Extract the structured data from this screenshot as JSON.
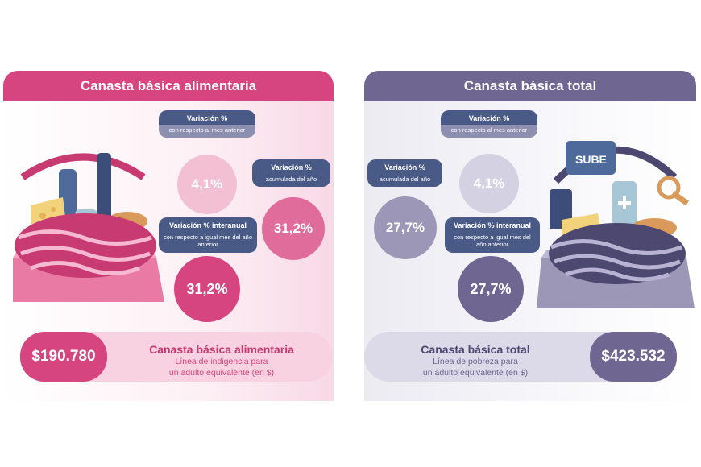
{
  "left": {
    "title": "Canasta básica alimentaria",
    "monthly": {
      "label": "Variación %",
      "sub": "con respecto al mes anterior",
      "value": "4,1%"
    },
    "annual": {
      "label": "Variación %",
      "sub": "acumulada del año",
      "value": "31,2%"
    },
    "interannual": {
      "label": "Variación % interanual",
      "sub": "con respecto a igual mes del año anterior",
      "value": "31,2%"
    },
    "price": "$190.780",
    "footer_title": "Canasta básica alimentaria",
    "footer_sub_1": "Línea de indigencia para",
    "footer_sub_2": "un adulto equivalente (en $)"
  },
  "right": {
    "title": "Canasta básica total",
    "monthly": {
      "label": "Variación %",
      "sub": "con respecto al mes anterior",
      "value": "4,1%"
    },
    "annual": {
      "label": "Variación %",
      "sub": "acumulada del año",
      "value": "27,7%"
    },
    "interannual": {
      "label": "Variación % interanual",
      "sub": "con respecto a igual mes del año anterior",
      "value": "27,7%"
    },
    "price": "$423.532",
    "footer_title": "Canasta básica total",
    "footer_sub_1": "Línea de pobreza para",
    "footer_sub_2": "un adulto equivalente (en $)",
    "card_text": "SUBE"
  },
  "colors": {
    "pink_dark": "#d6457f",
    "pink_mid": "#e06c9b",
    "pink_light": "#f3bfd3",
    "pink_bg": "#fbe6ee",
    "purple_dark": "#6f6692",
    "purple_mid": "#9d97b7",
    "purple_light": "#d4d1e2",
    "purple_bg": "#eceaf2",
    "navy_tag": "#4a5a86"
  }
}
